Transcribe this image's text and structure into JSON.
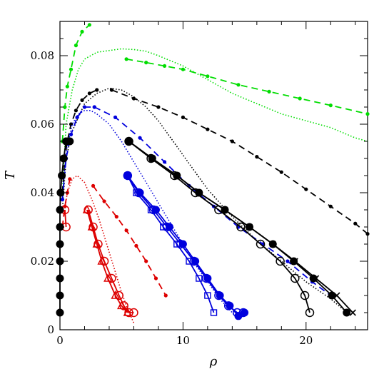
{
  "chart_data": {
    "type": "scatter",
    "title": "",
    "xlabel": "ρ",
    "ylabel": "T",
    "xlim": [
      0,
      25
    ],
    "ylim": [
      0,
      0.09
    ],
    "xticks": [
      0,
      10,
      20
    ],
    "xtick_labels": [
      "0",
      "10",
      "20"
    ],
    "yticks": [
      0,
      0.02,
      0.04,
      0.06,
      0.08
    ],
    "ytick_labels": [
      "0",
      "0.02",
      "0.04",
      "0.06",
      "0.08"
    ],
    "grid": false,
    "legend": "none",
    "series": [
      {
        "color": "#00dd00",
        "style": "dotted",
        "marker": "none",
        "x": [
          0.2,
          0.5,
          1.0,
          1.5,
          2.0,
          3.0,
          4.0,
          5.0,
          6.0,
          7.0,
          8.0,
          10.0,
          12.0,
          14.0,
          16.0,
          18.0,
          20.0,
          22.0,
          24.0,
          25.0
        ],
        "y": [
          0.04,
          0.06,
          0.07,
          0.076,
          0.079,
          0.081,
          0.0815,
          0.082,
          0.0818,
          0.0813,
          0.08,
          0.077,
          0.073,
          0.069,
          0.066,
          0.063,
          0.061,
          0.059,
          0.056,
          0.055
        ]
      },
      {
        "color": "#00dd00",
        "style": "dashed",
        "marker": "small-dot",
        "x": [
          0.2,
          0.4,
          0.6,
          0.9,
          1.3,
          1.8,
          2.4
        ],
        "y": [
          0.055,
          0.065,
          0.071,
          0.076,
          0.083,
          0.087,
          0.089
        ]
      },
      {
        "color": "#00dd00",
        "style": "dashed",
        "marker": "small-dot",
        "x": [
          5.4,
          7.0,
          8.5,
          10.0,
          12.0,
          14.5,
          17.0,
          19.5,
          22.0,
          25.0
        ],
        "y": [
          0.079,
          0.078,
          0.077,
          0.076,
          0.074,
          0.0715,
          0.0695,
          0.0675,
          0.0655,
          0.063
        ]
      },
      {
        "color": "#000000",
        "style": "dotted",
        "marker": "none",
        "x": [
          0.2,
          0.5,
          1.0,
          2.0,
          3.0,
          4.0,
          5.0,
          6.0,
          7.0,
          8.0,
          9.0,
          10.0,
          11.0,
          12.0,
          13.0,
          14.0,
          16.0,
          18.0,
          20.0,
          22.0,
          23.0
        ],
        "y": [
          0.035,
          0.05,
          0.058,
          0.066,
          0.069,
          0.0705,
          0.07,
          0.068,
          0.065,
          0.061,
          0.056,
          0.051,
          0.046,
          0.041,
          0.037,
          0.033,
          0.026,
          0.02,
          0.014,
          0.009,
          0.006
        ]
      },
      {
        "color": "#000000",
        "style": "dashed",
        "marker": "small-dot",
        "x": [
          0.2,
          0.4,
          0.6,
          0.9,
          1.3,
          1.8,
          2.4,
          3.0
        ],
        "y": [
          0.04,
          0.05,
          0.055,
          0.06,
          0.064,
          0.067,
          0.069,
          0.07
        ]
      },
      {
        "color": "#000000",
        "style": "dashed",
        "marker": "small-dot",
        "x": [
          4.2,
          6.0,
          8.0,
          10.0,
          12.0,
          14.0,
          16.0,
          18.0,
          20.0,
          22.0,
          24.0,
          25.0
        ],
        "y": [
          0.07,
          0.0675,
          0.065,
          0.062,
          0.0585,
          0.055,
          0.0505,
          0.046,
          0.041,
          0.036,
          0.031,
          0.028
        ]
      },
      {
        "color": "#0000dd",
        "style": "dotted",
        "marker": "none",
        "x": [
          0.2,
          0.5,
          1.0,
          1.5,
          2.0,
          2.5,
          3.0,
          4.0,
          5.0,
          6.0,
          7.0,
          8.0,
          9.0,
          10.0,
          11.0,
          12.0,
          13.0,
          14.0,
          14.5
        ],
        "y": [
          0.038,
          0.052,
          0.06,
          0.063,
          0.064,
          0.064,
          0.063,
          0.06,
          0.055,
          0.049,
          0.043,
          0.037,
          0.031,
          0.025,
          0.019,
          0.014,
          0.009,
          0.005,
          0.003
        ]
      },
      {
        "color": "#0000dd",
        "style": "dashed",
        "marker": "small-dot",
        "x": [
          0.2,
          0.5,
          0.9,
          1.4,
          2.0,
          2.8
        ],
        "y": [
          0.038,
          0.05,
          0.057,
          0.062,
          0.065,
          0.065
        ]
      },
      {
        "color": "#0000dd",
        "style": "dashed",
        "marker": "small-dot",
        "x": [
          2.8,
          4.5,
          6.5,
          8.5,
          10.5,
          12.5,
          14.5,
          16.5,
          18.5,
          20.5,
          22.0
        ],
        "y": [
          0.065,
          0.062,
          0.056,
          0.049,
          0.042,
          0.036,
          0.03,
          0.025,
          0.02,
          0.014,
          0.01
        ]
      },
      {
        "color": "#0000dd",
        "style": "solid",
        "marker": "filled-circle",
        "x": [
          5.5,
          6.5,
          7.8,
          8.9,
          10.0,
          11.0,
          12.0,
          13.0,
          13.8,
          14.5,
          15.0
        ],
        "y": [
          0.045,
          0.04,
          0.035,
          0.03,
          0.025,
          0.02,
          0.015,
          0.01,
          0.007,
          0.004,
          0.005
        ]
      },
      {
        "color": "#0000dd",
        "style": "solid",
        "marker": "open-circle",
        "x": [
          5.5,
          6.4,
          7.6,
          8.7,
          9.8,
          10.9,
          11.9,
          12.9,
          13.7,
          14.4,
          14.9
        ],
        "y": [
          0.045,
          0.04,
          0.035,
          0.03,
          0.025,
          0.02,
          0.015,
          0.01,
          0.007,
          0.005,
          0.005
        ]
      },
      {
        "color": "#0000dd",
        "style": "solid",
        "marker": "open-square",
        "x": [
          5.5,
          6.2,
          7.4,
          8.4,
          9.5,
          10.5,
          11.3,
          12.0,
          12.5
        ],
        "y": [
          0.045,
          0.04,
          0.035,
          0.03,
          0.025,
          0.02,
          0.015,
          0.01,
          0.005
        ]
      },
      {
        "color": "#dd0000",
        "style": "dotted",
        "marker": "none",
        "x": [
          0.3,
          0.6,
          1.0,
          1.4,
          2.0,
          2.6,
          3.2,
          3.8,
          4.4,
          5.0,
          5.5,
          6.0
        ],
        "y": [
          0.033,
          0.04,
          0.044,
          0.045,
          0.043,
          0.038,
          0.032,
          0.025,
          0.018,
          0.011,
          0.006,
          0.002
        ]
      },
      {
        "color": "#dd0000",
        "style": "dashed",
        "marker": "small-dot",
        "x": [
          0.2,
          0.4,
          0.6,
          0.8
        ],
        "y": [
          0.03,
          0.036,
          0.04,
          0.044
        ]
      },
      {
        "color": "#dd0000",
        "style": "dashed",
        "marker": "small-dot",
        "x": [
          2.7,
          3.6,
          4.6,
          5.4,
          6.2,
          7.0,
          7.8,
          8.6
        ],
        "y": [
          0.042,
          0.0375,
          0.033,
          0.029,
          0.0245,
          0.02,
          0.015,
          0.01
        ]
      },
      {
        "color": "#dd0000",
        "style": "solid",
        "marker": "open-circle",
        "x": [
          2.3,
          2.7,
          3.1,
          3.6,
          4.2,
          4.8,
          5.2,
          5.6,
          6.0
        ],
        "y": [
          0.035,
          0.03,
          0.025,
          0.02,
          0.015,
          0.01,
          0.007,
          0.005,
          0.005
        ]
      },
      {
        "color": "#dd0000",
        "style": "solid",
        "marker": "open-triangle",
        "x": [
          2.2,
          2.6,
          3.0,
          3.4,
          3.9,
          4.5,
          5.0,
          5.5
        ],
        "y": [
          0.035,
          0.03,
          0.025,
          0.02,
          0.015,
          0.01,
          0.007,
          0.005
        ]
      },
      {
        "color": "#dd0000",
        "style": "solid",
        "marker": "open-circle",
        "x": [
          0.4,
          0.5
        ],
        "y": [
          0.035,
          0.03
        ]
      },
      {
        "color": "#000000",
        "style": "solid",
        "marker": "filled-circle",
        "x": [
          0.0,
          0.0,
          0.0,
          0.0,
          0.0,
          0.0,
          0.0,
          0.05,
          0.15,
          0.3,
          0.5,
          0.8
        ],
        "y": [
          0.005,
          0.01,
          0.015,
          0.02,
          0.025,
          0.03,
          0.035,
          0.04,
          0.045,
          0.05,
          0.055,
          0.055
        ]
      },
      {
        "color": "#000000",
        "style": "solid",
        "marker": "filled-circle",
        "x": [
          5.6,
          7.5,
          9.5,
          11.3,
          13.4,
          15.4,
          17.3,
          19.0,
          20.6,
          22.1,
          23.3
        ],
        "y": [
          0.055,
          0.05,
          0.045,
          0.04,
          0.035,
          0.03,
          0.025,
          0.02,
          0.015,
          0.01,
          0.005
        ]
      },
      {
        "color": "#000000",
        "style": "solid",
        "marker": "open-circle",
        "x": [
          5.6,
          7.4,
          9.3,
          11.0,
          12.9,
          14.7,
          16.3,
          17.9,
          19.1,
          19.9,
          20.3
        ],
        "y": [
          0.055,
          0.05,
          0.045,
          0.04,
          0.035,
          0.03,
          0.025,
          0.02,
          0.015,
          0.01,
          0.005
        ]
      },
      {
        "color": "#000000",
        "style": "solid",
        "marker": "cross",
        "x": [
          5.6,
          7.5,
          9.5,
          11.3,
          13.4,
          15.4,
          17.3,
          19.1,
          20.8,
          22.5,
          23.8
        ],
        "y": [
          0.055,
          0.05,
          0.045,
          0.04,
          0.035,
          0.03,
          0.025,
          0.02,
          0.015,
          0.01,
          0.005
        ]
      }
    ]
  }
}
